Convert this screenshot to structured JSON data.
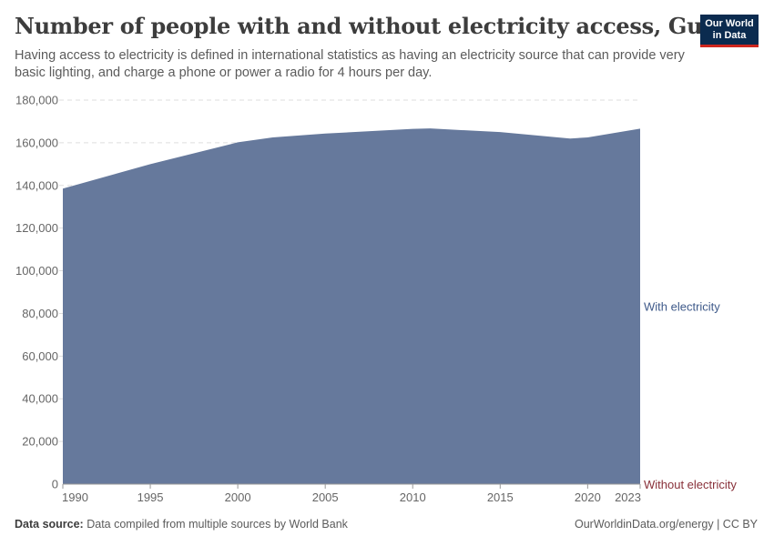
{
  "header": {
    "title": "Number of people with and without electricity access, Guam",
    "subtitle": "Having access to electricity is defined in international statistics as having an electricity source that can provide very basic lighting, and charge a phone or power a radio for 4 hours per day."
  },
  "logo": {
    "line1": "Our World",
    "line2": "in Data"
  },
  "footer": {
    "source_label": "Data source:",
    "source_text": "Data compiled from multiple sources by World Bank",
    "url_text": "OurWorldinData.org/energy | CC BY"
  },
  "colors": {
    "with_electricity": "#66799c",
    "with_electricity_label": "#3f5a8a",
    "without_electricity": "#883039",
    "grid": "#dddddd",
    "axis_text": "#666666"
  },
  "chart_data": {
    "type": "area",
    "stacked": true,
    "x": [
      1990,
      1995,
      2000,
      2002,
      2005,
      2010,
      2011,
      2015,
      2019,
      2020,
      2023
    ],
    "series": [
      {
        "name": "With electricity",
        "values": [
          138500,
          150000,
          160200,
          162500,
          164300,
          166500,
          166700,
          165000,
          162000,
          162500,
          166600
        ]
      },
      {
        "name": "Without electricity",
        "values": [
          0,
          0,
          0,
          0,
          0,
          0,
          0,
          0,
          0,
          0,
          0
        ]
      }
    ],
    "xlim": [
      1990,
      2023
    ],
    "ylim": [
      0,
      180000
    ],
    "yticks": [
      0,
      20000,
      40000,
      60000,
      80000,
      100000,
      120000,
      140000,
      160000,
      180000
    ],
    "ytick_labels": [
      "0",
      "20,000",
      "40,000",
      "60,000",
      "80,000",
      "100,000",
      "120,000",
      "140,000",
      "160,000",
      "180,000"
    ],
    "xticks": [
      1990,
      1995,
      2000,
      2005,
      2010,
      2015,
      2020,
      2023
    ],
    "xtick_labels": [
      "1990",
      "1995",
      "2000",
      "2005",
      "2010",
      "2015",
      "2020",
      "2023"
    ],
    "grid": "horizontal-dashed",
    "legend": "right-inline"
  }
}
